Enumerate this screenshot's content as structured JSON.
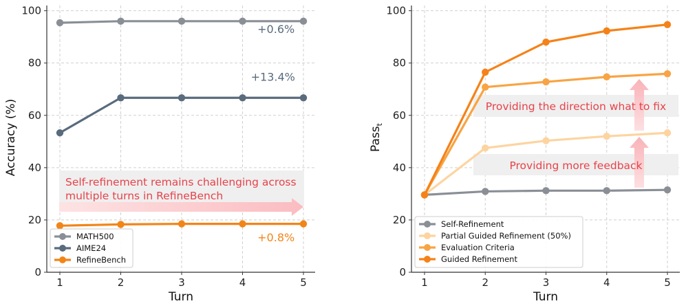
{
  "chart_data": [
    {
      "type": "line",
      "x": [
        1,
        2,
        3,
        4,
        5
      ],
      "xlabel": "Turn",
      "ylabel": "Accuracy (%)",
      "ylim": [
        0,
        102
      ],
      "yticks": [
        0,
        20,
        40,
        60,
        80,
        100
      ],
      "grid": true,
      "legend_position": "bottom-left",
      "series": [
        {
          "name": "MATH500",
          "color": "#8a8f96",
          "values": [
            95.4,
            96.0,
            96.0,
            96.0,
            96.0
          ]
        },
        {
          "name": "AIME24",
          "color": "#596b7d",
          "values": [
            53.3,
            66.7,
            66.7,
            66.7,
            66.7
          ]
        },
        {
          "name": "RefineBench",
          "color": "#f28518",
          "values": [
            17.8,
            18.3,
            18.5,
            18.5,
            18.5
          ]
        }
      ],
      "annotations": [
        {
          "text": "+0.6%",
          "color": "#596b7d",
          "x": 4.55,
          "y": 91.5
        },
        {
          "text": "+13.4%",
          "color": "#596b7d",
          "x": 4.5,
          "y": 73.2
        },
        {
          "text": "+0.8%",
          "color": "#f28518",
          "x": 4.55,
          "y": 11.8
        }
      ],
      "arrow_text_lines": [
        "Self-refinement remains challenging across",
        "multiple turns in RefineBench"
      ]
    },
    {
      "type": "line",
      "x": [
        1,
        2,
        3,
        4,
        5
      ],
      "xlabel": "Turn",
      "ylabel_main": "Pass",
      "ylabel_sub": "t",
      "ylim": [
        0,
        102
      ],
      "yticks": [
        0,
        20,
        40,
        60,
        80,
        100
      ],
      "grid": true,
      "legend_position": "bottom-left",
      "series": [
        {
          "name": "Self-Refinement",
          "color": "#8a8f96",
          "values": [
            29.6,
            30.9,
            31.2,
            31.2,
            31.5
          ]
        },
        {
          "name": "Partial Guided Refinement (50%)",
          "color": "#fdd4a0",
          "values": [
            29.6,
            47.5,
            50.3,
            52.0,
            53.3
          ]
        },
        {
          "name": "Evaluation Criteria",
          "color": "#f8a444",
          "values": [
            29.6,
            70.8,
            72.8,
            74.7,
            75.9
          ]
        },
        {
          "name": "Guided Refinement",
          "color": "#f58218",
          "values": [
            29.6,
            76.5,
            88.0,
            92.3,
            94.7
          ]
        }
      ],
      "boxes": [
        {
          "text": "Providing the direction what to fix",
          "color": "#e8424a"
        },
        {
          "text": "Providing more feedback",
          "color": "#e8424a"
        }
      ]
    }
  ]
}
